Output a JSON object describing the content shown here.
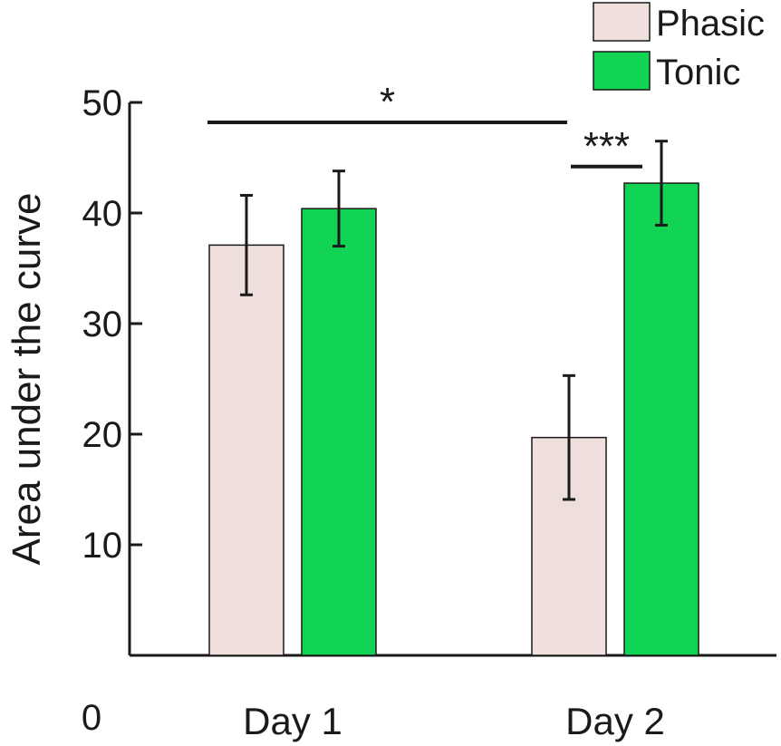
{
  "chart_data": {
    "type": "bar",
    "title": "",
    "xlabel": "",
    "ylabel": "Area under the curve",
    "ylim": [
      0,
      50
    ],
    "yticks": [
      10,
      20,
      30,
      40,
      50
    ],
    "zero_label": "0",
    "categories": [
      "Day 1",
      "Day 2"
    ],
    "series": [
      {
        "name": "Phasic",
        "color": "#eedfdc",
        "values": [
          37.1,
          19.7
        ],
        "errors": [
          4.5,
          5.6
        ]
      },
      {
        "name": "Tonic",
        "color": "#11d454",
        "values": [
          40.4,
          42.7
        ],
        "errors": [
          3.4,
          3.8
        ]
      }
    ],
    "legend": {
      "position": "top-right"
    },
    "significance": [
      {
        "label": "*",
        "from": {
          "category": 0,
          "series": 0
        },
        "to": {
          "category": 1,
          "series": 0
        },
        "y": 48.2
      },
      {
        "label": "***",
        "from": {
          "category": 1,
          "series": 0
        },
        "to": {
          "category": 1,
          "series": 1
        },
        "y": 44.2
      }
    ]
  }
}
